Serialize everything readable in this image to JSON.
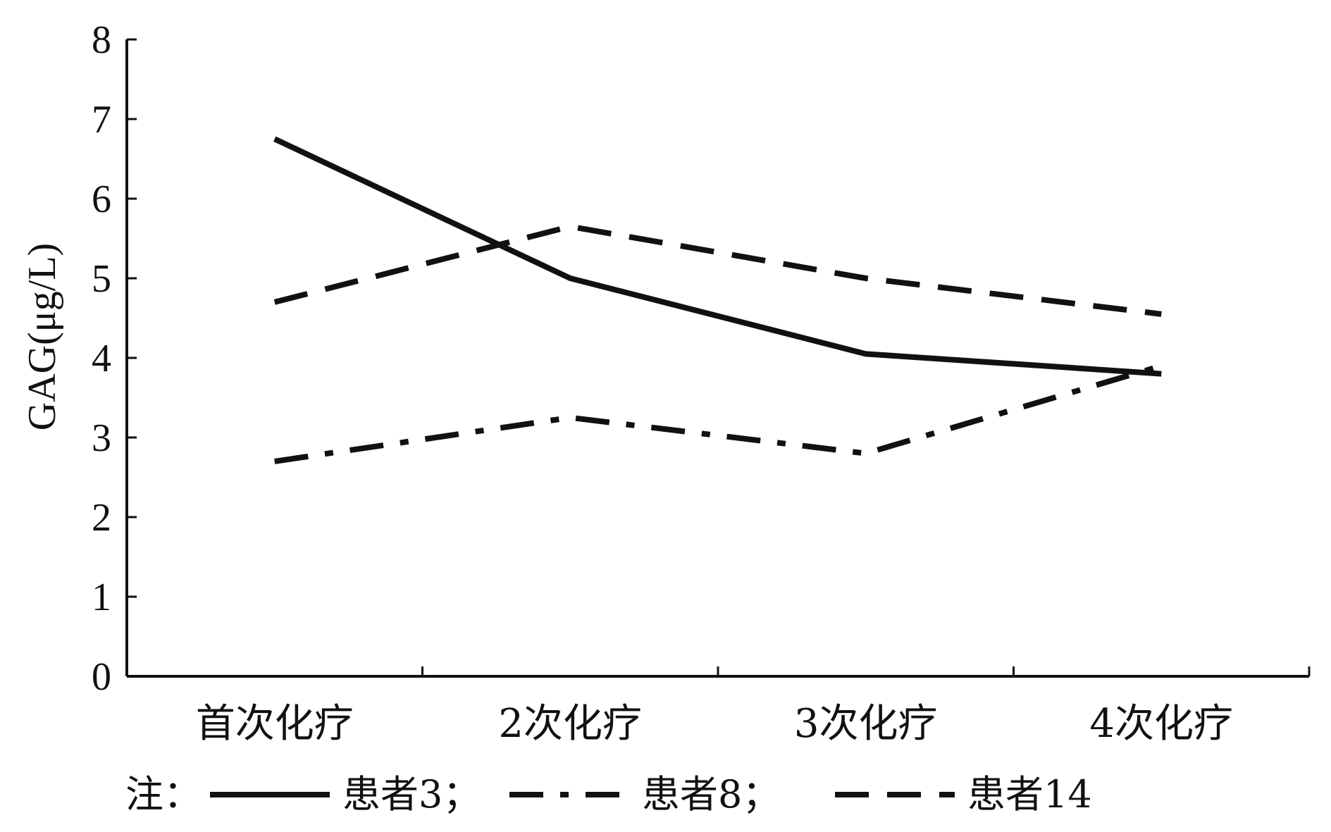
{
  "chart_data": {
    "type": "line",
    "title": "",
    "xlabel": "",
    "ylabel": "GAG(μg/L)",
    "categories": [
      "首次化疗",
      "2次化疗",
      "3次化疗",
      "4次化疗"
    ],
    "ylim": [
      0,
      8
    ],
    "yticks": [
      "0",
      "1",
      "2",
      "3",
      "4",
      "5",
      "6",
      "7",
      "8"
    ],
    "grid": false,
    "legend_placement": "bottom",
    "note_prefix": "注：",
    "series": [
      {
        "name": "患者3",
        "legend_label": "患者3；",
        "style": "solid",
        "values": [
          6.75,
          5.0,
          4.05,
          3.8
        ]
      },
      {
        "name": "患者8",
        "legend_label": "患者8；",
        "style": "dash-dot",
        "values": [
          2.7,
          3.25,
          2.8,
          3.9
        ]
      },
      {
        "name": "患者14",
        "legend_label": "患者14",
        "style": "dashed",
        "values": [
          4.7,
          5.65,
          5.0,
          4.55
        ]
      }
    ],
    "line_color": "#111111"
  }
}
